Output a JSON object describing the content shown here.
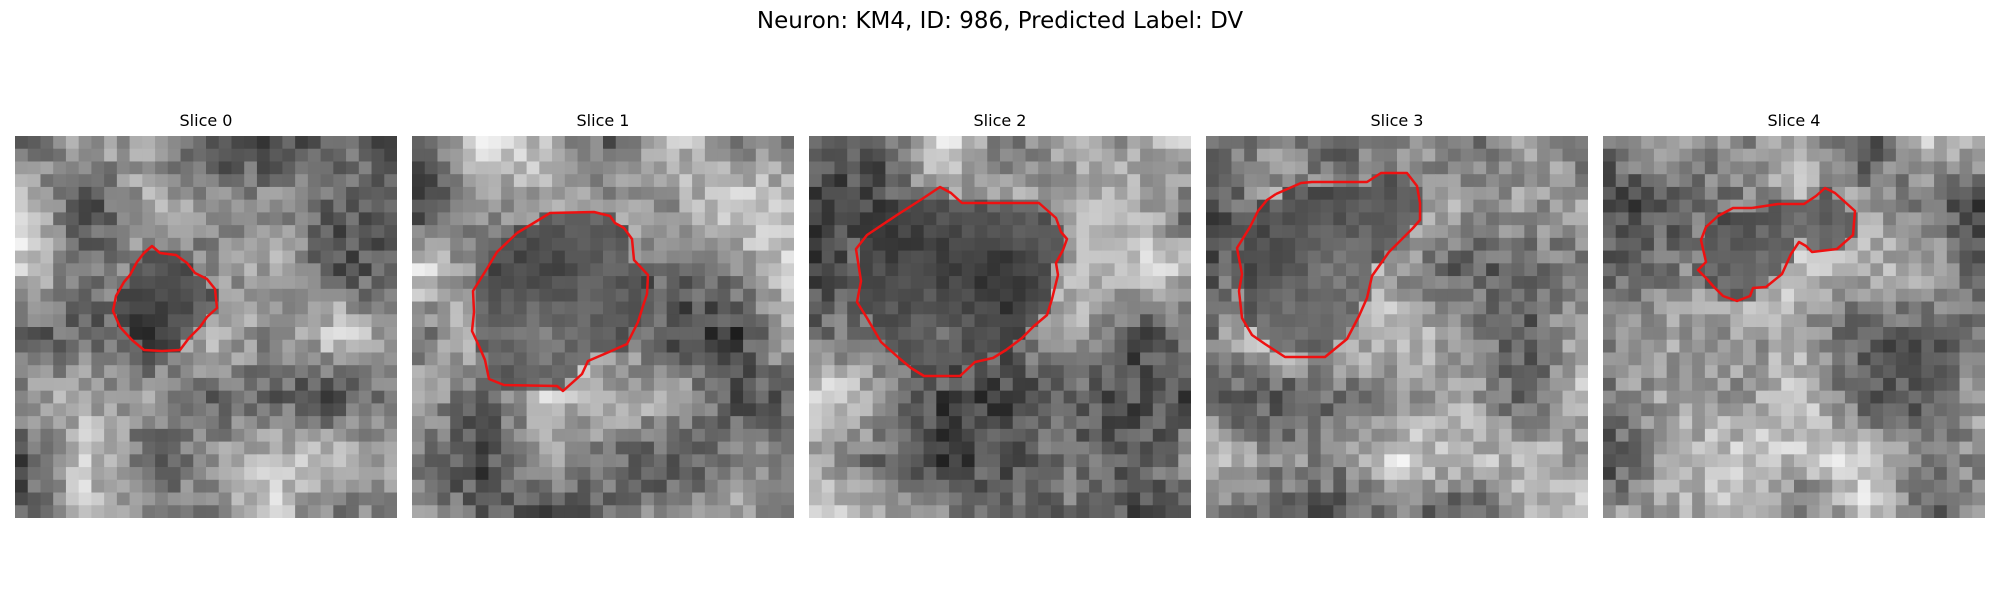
{
  "figure": {
    "title": "Neuron: KM4, ID: 986, Predicted Label: DV",
    "outline_color": "#ee1111"
  },
  "panels": [
    {
      "title": "Slice 0"
    },
    {
      "title": "Slice 1"
    },
    {
      "title": "Slice 2"
    },
    {
      "title": "Slice 3"
    },
    {
      "title": "Slice 4"
    }
  ]
}
